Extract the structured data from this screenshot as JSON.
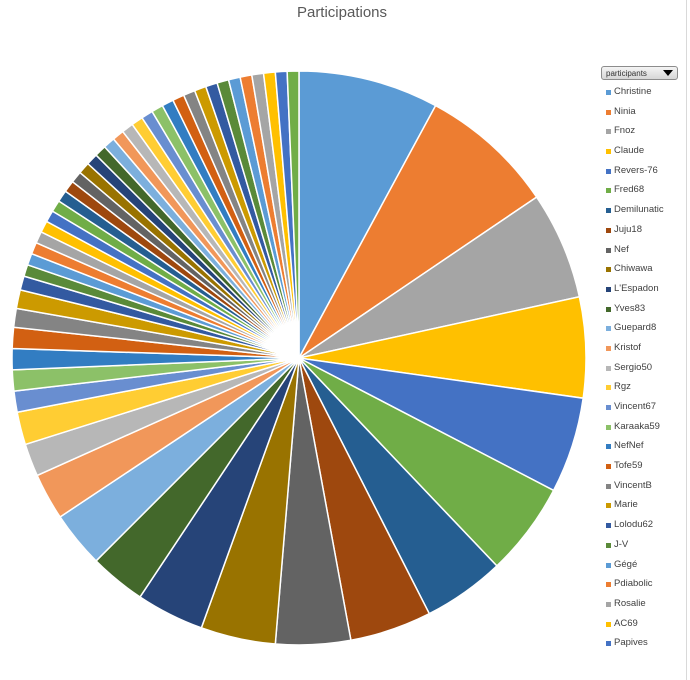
{
  "chart_data": {
    "type": "pie",
    "title": "Participations",
    "filter_button_label": "participants",
    "legend_labels": [
      "Christine",
      "Ninia",
      "Fnoz",
      "Claude",
      "Revers-76",
      "Fred68",
      "Demilunatic",
      "Juju18",
      "Nef",
      "Chiwawa",
      "L'Espadon",
      "Yves83",
      "Guepard8",
      "Kristof",
      "Sergio50",
      "Rgz",
      "Vincent67",
      "Karaaka59",
      "NefNef",
      "Tofe59",
      "VincentB",
      "Marie",
      "Lolodu62",
      "J-V",
      "Gégé",
      "Pdiabolic",
      "Rosalie",
      "AC69",
      "Papives"
    ],
    "values": [
      30.0,
      29.0,
      23.0,
      21.5,
      20.5,
      20.0,
      17.5,
      17.5,
      16.0,
      16.0,
      14.5,
      12.0,
      12.0,
      10.0,
      7.0,
      7.0,
      4.5,
      4.5,
      4.5,
      4.5,
      4.0,
      4.0,
      3.0,
      2.5,
      2.5,
      2.5,
      2.5,
      2.5,
      2.5,
      2.5,
      2.5,
      2.5,
      2.5,
      2.5,
      2.5,
      2.5,
      2.5,
      2.5,
      2.5,
      2.5,
      2.5,
      2.5,
      2.5,
      2.5,
      2.5,
      2.5,
      2.5,
      2.5,
      2.5,
      2.5,
      2.5,
      2.5,
      2.5,
      2.5
    ],
    "palette": [
      "#5b9bd5",
      "#ed7d31",
      "#a5a5a5",
      "#ffc000",
      "#4472c4",
      "#70ad47",
      "#255e91",
      "#9e480e",
      "#636363",
      "#997300",
      "#264478",
      "#43682b",
      "#7cafdd",
      "#f1975a",
      "#b7b7b7",
      "#ffcd33",
      "#698ed0",
      "#8cc168",
      "#327dc2",
      "#d26012",
      "#848484",
      "#cc9a00",
      "#335aa1",
      "#5a8a39"
    ],
    "start_angle_deg": 0,
    "direction": "clockwise"
  }
}
